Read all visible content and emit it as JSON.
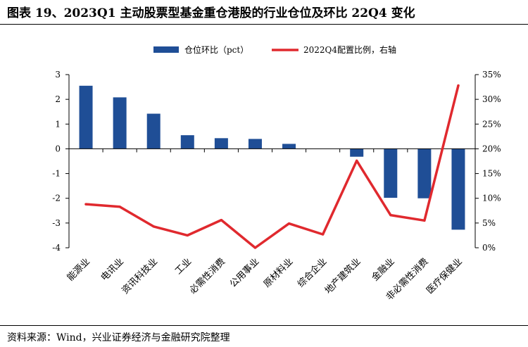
{
  "header": {
    "title": "图表 19、2023Q1 主动股票型基金重仓港股的行业仓位及环比 22Q4 变化"
  },
  "footer": {
    "source": "资料来源：Wind，兴业证券经济与金融研究院整理"
  },
  "colors": {
    "bar": "#1F4E96",
    "line": "#E0292E",
    "axis": "#000000"
  },
  "chart_data": {
    "type": "bar",
    "title": "",
    "categories": [
      "能源业",
      "电讯业",
      "资讯科技业",
      "工业",
      "必需性消费",
      "公用事业",
      "原材料业",
      "综合企业",
      "地产建筑业",
      "金融业",
      "非必需性消费",
      "医疗保健业"
    ],
    "series": [
      {
        "name": "仓位环比（pct）",
        "type": "bar",
        "axis": "left",
        "values": [
          2.55,
          2.08,
          1.42,
          0.55,
          0.43,
          0.4,
          0.2,
          0.0,
          -0.32,
          -1.98,
          -2.0,
          -3.27
        ]
      },
      {
        "name": "2022Q4配置比例，右轴",
        "type": "line",
        "axis": "right",
        "values": [
          8.8,
          8.3,
          4.3,
          2.5,
          5.6,
          0.0,
          4.9,
          2.7,
          17.6,
          6.6,
          5.5,
          32.8
        ]
      }
    ],
    "y_left": {
      "min": -4,
      "max": 3,
      "ticks": [
        "3",
        "2",
        "1",
        "0",
        "-1",
        "-2",
        "-3",
        "-4"
      ]
    },
    "y_right": {
      "min": 0,
      "max": 35,
      "ticks": [
        "35%",
        "30%",
        "25%",
        "20%",
        "15%",
        "10%",
        "5%",
        "0%"
      ]
    },
    "legend_position": "top"
  }
}
